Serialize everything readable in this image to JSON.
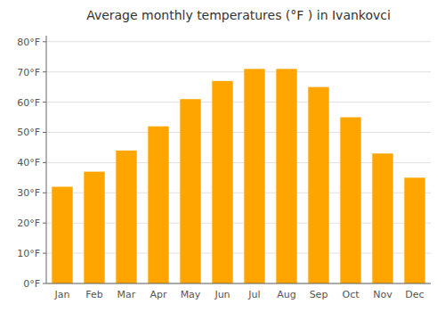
{
  "chart_data": {
    "type": "bar",
    "title": "Average monthly temperatures (°F ) in Ivankovci",
    "categories": [
      "Jan",
      "Feb",
      "Mar",
      "Apr",
      "May",
      "Jun",
      "Jul",
      "Aug",
      "Sep",
      "Oct",
      "Nov",
      "Dec"
    ],
    "values": [
      32,
      37,
      44,
      52,
      61,
      67,
      71,
      71,
      65,
      55,
      43,
      35
    ],
    "color": "#FFA500",
    "ylim": [
      0,
      82
    ],
    "yticks": [
      {
        "value": 0,
        "label": "0°F"
      },
      {
        "value": 10,
        "label": "10°F"
      },
      {
        "value": 20,
        "label": "20°F"
      },
      {
        "value": 30,
        "label": "30°F"
      },
      {
        "value": 40,
        "label": "40°F"
      },
      {
        "value": 50,
        "label": "50°F"
      },
      {
        "value": 60,
        "label": "60°F"
      },
      {
        "value": 70,
        "label": "70°F"
      },
      {
        "value": 80,
        "label": "80°F"
      }
    ],
    "grid": true
  }
}
